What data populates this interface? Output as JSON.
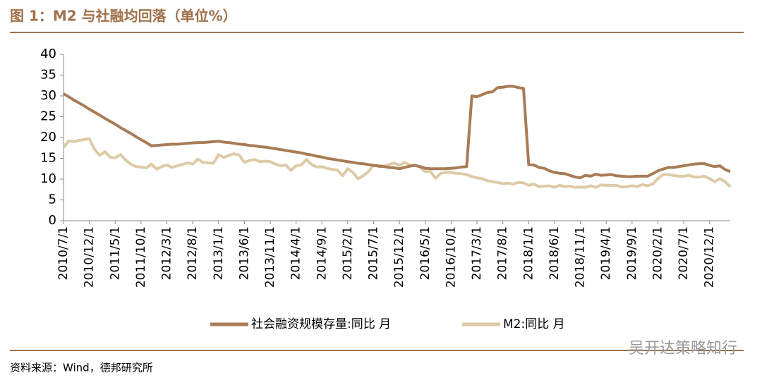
{
  "chart_data": {
    "type": "line",
    "title": "图 1：M2 与社融均回落（单位%）",
    "source": "资料来源：Wind，德邦研究所",
    "watermark": "吴开达策略知行",
    "categories": [
      "2010/7/1",
      null,
      null,
      null,
      null,
      "2010/12/1",
      null,
      null,
      null,
      null,
      "2011/5/1",
      null,
      null,
      null,
      null,
      "2011/10/1",
      null,
      null,
      null,
      null,
      "2012/3/1",
      null,
      null,
      null,
      null,
      "2012/8/1",
      null,
      null,
      null,
      null,
      "2013/1/1",
      null,
      null,
      null,
      null,
      "2013/6/1",
      null,
      null,
      null,
      null,
      "2013/11/1",
      null,
      null,
      null,
      null,
      "2014/4/1",
      null,
      null,
      null,
      null,
      "2014/9/1",
      null,
      null,
      null,
      null,
      "2015/2/1",
      null,
      null,
      null,
      null,
      "2015/7/1",
      null,
      null,
      null,
      null,
      "2015/12/1",
      null,
      null,
      null,
      null,
      "2016/5/1",
      null,
      null,
      null,
      null,
      "2016/10/1",
      null,
      null,
      null,
      null,
      "2017/3/1",
      null,
      null,
      null,
      null,
      "2017/8/1",
      null,
      null,
      null,
      null,
      "2018/1/1",
      null,
      null,
      null,
      null,
      "2018/6/1",
      null,
      null,
      null,
      null,
      "2018/11/1",
      null,
      null,
      null,
      null,
      "2019/4/1",
      null,
      null,
      null,
      null,
      "2019/9/1",
      null,
      null,
      null,
      null,
      "2020/2/1",
      null,
      null,
      null,
      null,
      "2020/7/1",
      null,
      null,
      null,
      null,
      "2020/12/1",
      null,
      null,
      null,
      null
    ],
    "series": [
      {
        "name": "社会融资规模存量:同比 月",
        "color": "#a87c55",
        "values": [
          30.5,
          29.8,
          29.0,
          28.3,
          27.6,
          26.8,
          26.1,
          25.4,
          24.6,
          23.9,
          23.2,
          22.4,
          21.7,
          21.0,
          20.2,
          19.5,
          18.8,
          18.0,
          18.1,
          18.2,
          18.3,
          18.4,
          18.4,
          18.5,
          18.6,
          18.7,
          18.8,
          18.8,
          18.9,
          19.0,
          19.1,
          18.9,
          18.8,
          18.6,
          18.4,
          18.3,
          18.1,
          18.0,
          17.8,
          17.7,
          17.5,
          17.3,
          17.1,
          16.9,
          16.7,
          16.5,
          16.3,
          16.0,
          15.8,
          15.5,
          15.3,
          15.0,
          14.8,
          14.6,
          14.4,
          14.2,
          14.0,
          13.8,
          13.7,
          13.5,
          13.3,
          13.1,
          13.0,
          12.8,
          12.7,
          12.5,
          12.8,
          13.1,
          13.3,
          13.0,
          12.6,
          12.5,
          12.5,
          12.5,
          12.5,
          12.6,
          12.7,
          12.9,
          13.0,
          30.0,
          29.8,
          30.3,
          30.8,
          31.0,
          32.0,
          32.1,
          32.3,
          32.3,
          32.0,
          31.8,
          13.5,
          13.4,
          12.8,
          12.6,
          12.0,
          11.6,
          11.4,
          11.3,
          10.9,
          10.5,
          10.3,
          10.9,
          10.7,
          11.2,
          10.9,
          11.0,
          11.1,
          10.8,
          10.7,
          10.6,
          10.6,
          10.7,
          10.7,
          10.7,
          11.3,
          12.0,
          12.4,
          12.8,
          12.8,
          13.0,
          13.2,
          13.4,
          13.6,
          13.7,
          13.7,
          13.3,
          13.0,
          13.2,
          12.3,
          11.8
        ]
      },
      {
        "name": "M2:同比 月",
        "color": "#dccba6",
        "values": [
          17.6,
          19.2,
          19.0,
          19.3,
          19.5,
          19.7,
          17.2,
          15.7,
          16.6,
          15.3,
          15.1,
          15.9,
          14.6,
          13.6,
          13.0,
          12.9,
          12.7,
          13.6,
          12.4,
          13.0,
          13.4,
          12.8,
          13.2,
          13.5,
          13.9,
          13.6,
          14.8,
          14.0,
          13.9,
          13.8,
          15.9,
          15.2,
          15.7,
          16.1,
          15.8,
          14.0,
          14.5,
          14.7,
          14.2,
          14.3,
          14.2,
          13.6,
          13.2,
          13.4,
          12.1,
          13.2,
          13.4,
          14.7,
          13.5,
          12.9,
          13.0,
          12.6,
          12.3,
          12.2,
          10.8,
          12.5,
          11.6,
          10.1,
          10.8,
          11.8,
          13.3,
          13.3,
          13.1,
          13.5,
          13.9,
          13.3,
          14.0,
          13.4,
          13.4,
          12.8,
          11.8,
          11.8,
          10.2,
          11.4,
          11.6,
          11.6,
          11.4,
          11.3,
          11.1,
          10.6,
          10.3,
          10.1,
          9.6,
          9.4,
          9.2,
          8.9,
          9.0,
          8.8,
          9.2,
          9.1,
          8.5,
          8.8,
          8.2,
          8.3,
          8.4,
          8.0,
          8.5,
          8.2,
          8.3,
          8.0,
          8.1,
          8.0,
          8.4,
          8.0,
          8.6,
          8.5,
          8.5,
          8.5,
          8.1,
          8.2,
          8.4,
          8.2,
          8.7,
          8.4,
          8.8,
          10.1,
          11.1,
          11.1,
          10.9,
          10.7,
          10.7,
          10.9,
          10.5,
          10.5,
          10.7,
          10.1,
          9.4,
          10.1,
          9.4,
          8.1
        ]
      }
    ],
    "ylim": [
      0,
      40
    ],
    "yticks": [
      0,
      5,
      10,
      15,
      20,
      25,
      30,
      35,
      40
    ]
  }
}
